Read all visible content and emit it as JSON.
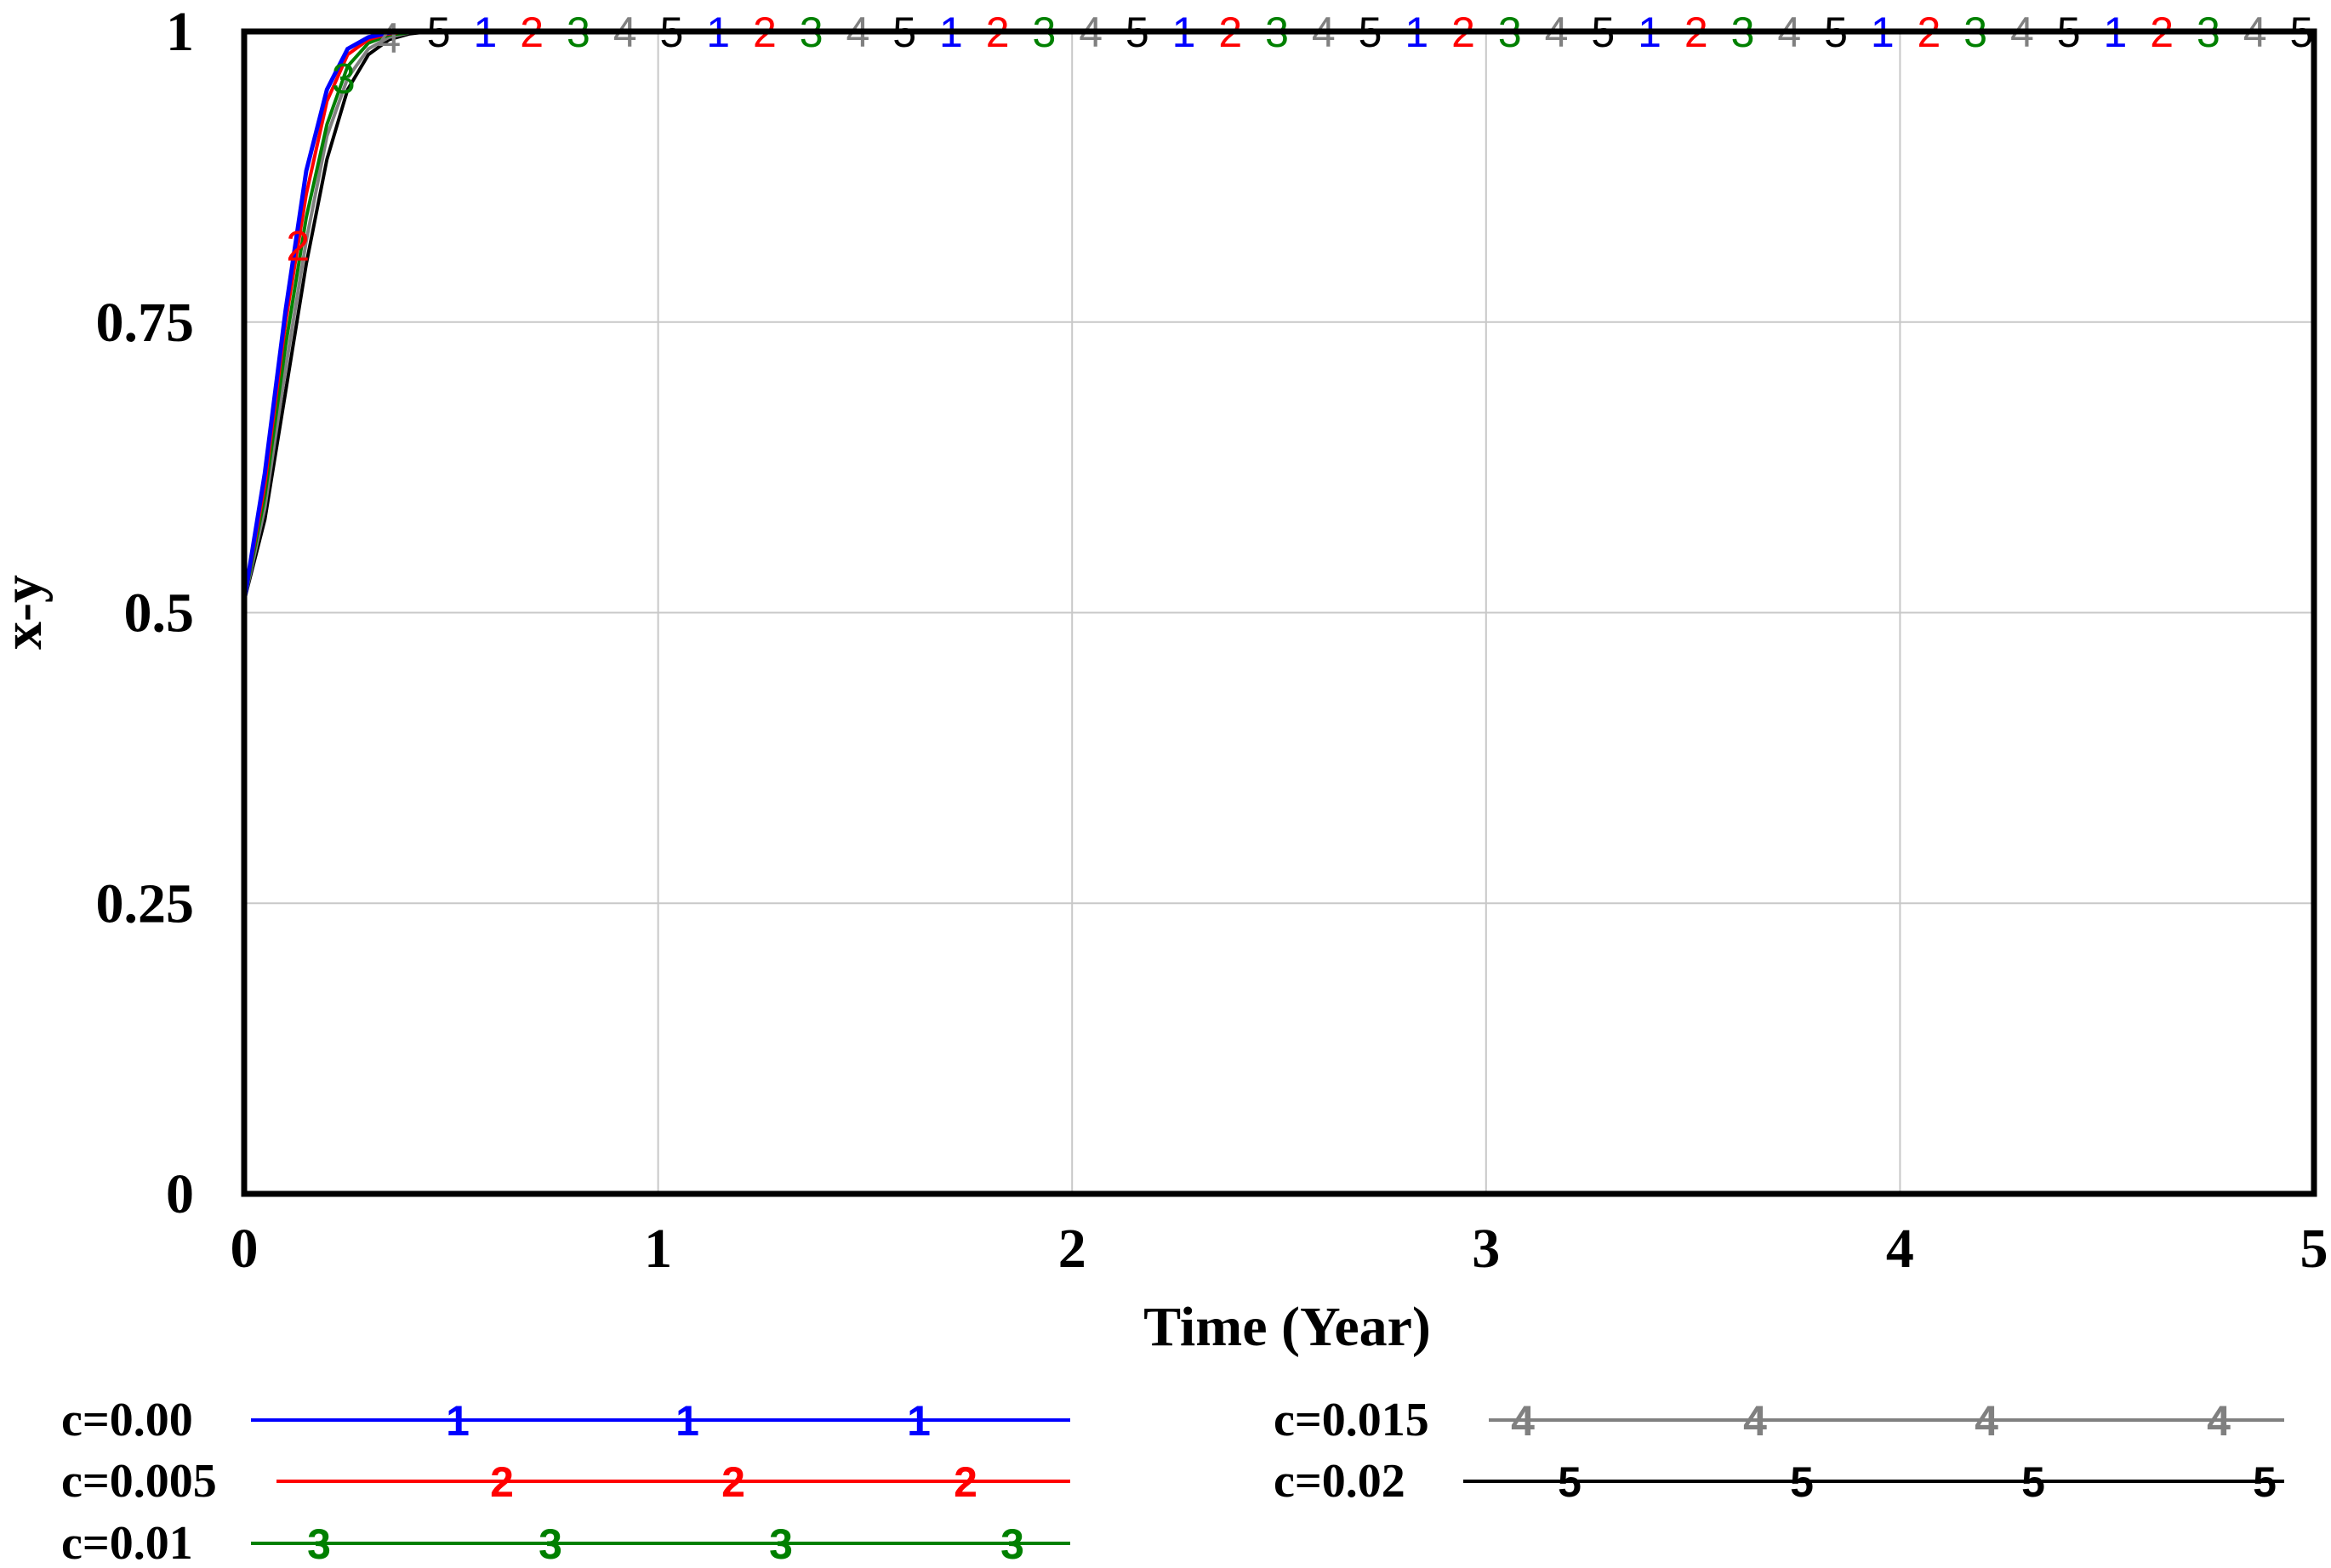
{
  "chart_data": {
    "type": "line",
    "title": "",
    "xlabel": "Time (Year)",
    "ylabel": "x-y",
    "xlim": [
      0,
      5
    ],
    "ylim": [
      0,
      1
    ],
    "x_ticks": [
      "0",
      "1",
      "2",
      "3",
      "4",
      "5"
    ],
    "y_ticks": [
      "0",
      "0.25",
      "0.5",
      "0.75",
      "1"
    ],
    "grid": true,
    "legend_position": "bottom",
    "x": [
      0,
      0.05,
      0.1,
      0.15,
      0.2,
      0.25,
      0.3,
      0.35,
      0.4,
      0.45,
      0.5,
      1,
      1.5,
      2,
      2.5,
      3,
      3.5,
      4,
      4.5,
      5
    ],
    "series": [
      {
        "name": "c=0.00",
        "marker": "1",
        "color": "#0000ff",
        "values": [
          0.51,
          0.62,
          0.76,
          0.88,
          0.95,
          0.985,
          0.995,
          0.999,
          1,
          1,
          1,
          1,
          1,
          1,
          1,
          1,
          1,
          1,
          1,
          1
        ]
      },
      {
        "name": "c=0.005",
        "marker": "2",
        "color": "#ff0000",
        "values": [
          0.51,
          0.61,
          0.75,
          0.86,
          0.94,
          0.98,
          0.993,
          0.998,
          1,
          1,
          1,
          1,
          1,
          1,
          1,
          1,
          1,
          1,
          1,
          1
        ]
      },
      {
        "name": "c=0.01",
        "marker": "3",
        "color": "#008000",
        "values": [
          0.51,
          0.6,
          0.73,
          0.84,
          0.92,
          0.97,
          0.99,
          0.997,
          0.999,
          1,
          1,
          1,
          1,
          1,
          1,
          1,
          1,
          1,
          1,
          1
        ]
      },
      {
        "name": "c=0.015",
        "marker": "4",
        "color": "#808080",
        "values": [
          0.51,
          0.59,
          0.71,
          0.82,
          0.91,
          0.96,
          0.985,
          0.995,
          0.999,
          1,
          1,
          1,
          1,
          1,
          1,
          1,
          1,
          1,
          1,
          1
        ]
      },
      {
        "name": "c=0.02",
        "marker": "5",
        "color": "#000000",
        "values": [
          0.51,
          0.58,
          0.69,
          0.8,
          0.89,
          0.95,
          0.98,
          0.993,
          0.998,
          1,
          1,
          1,
          1,
          1,
          1,
          1,
          1,
          1,
          1,
          1
        ]
      }
    ]
  }
}
